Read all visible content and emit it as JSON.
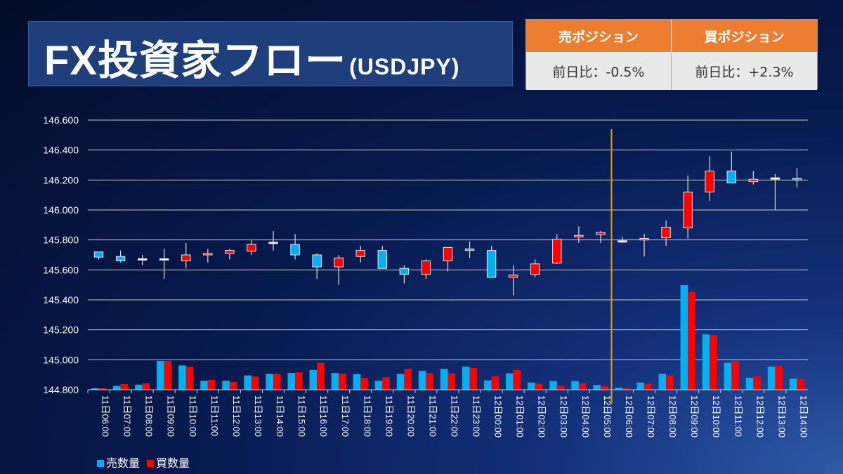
{
  "header": {
    "title": "FX投資家フロー",
    "subtitle": "(USDJPY)"
  },
  "positions": {
    "sell_label": "売ポジション",
    "buy_label": "買ポジション",
    "sell_change": "前日比：-0.5%",
    "buy_change": "前日比：+2.3%"
  },
  "colors": {
    "sell": "#00b0f0",
    "buy": "#ff0000",
    "header": "#ed7d31",
    "marker": "#e0a000"
  },
  "chart_data": {
    "type": "candlestick+bar",
    "ylim": [
      144.8,
      146.6
    ],
    "yticks": [
      "146.600",
      "146.400",
      "146.200",
      "146.000",
      "145.800",
      "145.600",
      "145.400",
      "145.200",
      "145.000",
      "144.800"
    ],
    "ytick_values": [
      146.6,
      146.4,
      146.2,
      146.0,
      145.8,
      145.6,
      145.4,
      145.2,
      145.0,
      144.8
    ],
    "categories": [
      "11日06:00",
      "11日07:00",
      "11日08:00",
      "11日09:00",
      "11日10:00",
      "11日11:00",
      "11日12:00",
      "11日13:00",
      "11日14:00",
      "11日15:00",
      "11日16:00",
      "11日17:00",
      "11日18:00",
      "11日19:00",
      "11日20:00",
      "11日21:00",
      "11日22:00",
      "11日23:00",
      "12日00:00",
      "12日01:00",
      "12日02:00",
      "12日03:00",
      "12日04:00",
      "12日05:00",
      "12日06:00",
      "12日07:00",
      "12日08:00",
      "12日09:00",
      "12日10:00",
      "12日11:00",
      "12日12:00",
      "12日13:00",
      "12日14:00"
    ],
    "ohlc": [
      [
        145.72,
        145.72,
        145.67,
        145.685
      ],
      [
        145.69,
        145.73,
        145.65,
        145.66
      ],
      [
        145.67,
        145.7,
        145.63,
        145.67
      ],
      [
        145.67,
        145.74,
        145.54,
        145.67
      ],
      [
        145.66,
        145.78,
        145.61,
        145.7
      ],
      [
        145.7,
        145.74,
        145.65,
        145.71
      ],
      [
        145.71,
        145.74,
        145.67,
        145.73
      ],
      [
        145.725,
        145.8,
        145.7,
        145.77
      ],
      [
        145.78,
        145.86,
        145.73,
        145.78
      ],
      [
        145.77,
        145.84,
        145.67,
        145.7
      ],
      [
        145.7,
        145.71,
        145.54,
        145.62
      ],
      [
        145.62,
        145.7,
        145.5,
        145.68
      ],
      [
        145.69,
        145.76,
        145.65,
        145.73
      ],
      [
        145.73,
        145.76,
        145.61,
        145.61
      ],
      [
        145.61,
        145.63,
        145.51,
        145.57
      ],
      [
        145.57,
        145.67,
        145.54,
        145.66
      ],
      [
        145.66,
        145.75,
        145.59,
        145.75
      ],
      [
        145.74,
        145.79,
        145.68,
        145.73
      ],
      [
        145.73,
        145.76,
        145.55,
        145.55
      ],
      [
        145.55,
        145.63,
        145.43,
        145.565
      ],
      [
        145.57,
        145.67,
        145.55,
        145.64
      ],
      [
        145.645,
        145.84,
        145.64,
        145.805
      ],
      [
        145.82,
        145.89,
        145.78,
        145.83
      ],
      [
        145.835,
        145.86,
        145.78,
        145.85
      ],
      [
        145.79,
        145.82,
        145.78,
        145.79
      ],
      [
        145.8,
        145.84,
        145.69,
        145.81
      ],
      [
        145.815,
        145.93,
        145.76,
        145.885
      ],
      [
        145.88,
        146.23,
        145.81,
        146.12
      ],
      [
        146.12,
        146.36,
        146.06,
        146.26
      ],
      [
        146.26,
        146.39,
        146.18,
        146.18
      ],
      [
        146.19,
        146.26,
        146.17,
        146.205
      ],
      [
        146.21,
        146.24,
        146.0,
        146.21
      ],
      [
        146.21,
        146.28,
        146.15,
        146.2
      ]
    ],
    "volume_scale_note": "relative units",
    "sell_volume": [
      0.5,
      1.3,
      1.7,
      9.6,
      8.1,
      3.0,
      3.0,
      4.8,
      5.3,
      5.6,
      6.6,
      5.6,
      5.2,
      3.0,
      5.3,
      6.3,
      7.0,
      7.7,
      3.1,
      5.5,
      2.4,
      2.9,
      2.9,
      1.6,
      0.7,
      2.4,
      5.3,
      34.9,
      18.5,
      9.0,
      4.0,
      7.7,
      3.7
    ],
    "buy_volume": [
      0.5,
      1.9,
      2.2,
      9.6,
      7.7,
      3.3,
      2.6,
      4.4,
      5.3,
      5.8,
      9.0,
      5.4,
      4.0,
      4.2,
      7.0,
      5.6,
      5.5,
      7.3,
      4.5,
      6.6,
      2.0,
      1.3,
      2.2,
      1.2,
      0.5,
      2.0,
      4.8,
      32.7,
      18.3,
      9.6,
      4.5,
      8.0,
      3.7
    ],
    "marker_after": "12日05:00",
    "legend": [
      "売数量",
      "買数量"
    ],
    "legend_position": "bottom-left"
  }
}
